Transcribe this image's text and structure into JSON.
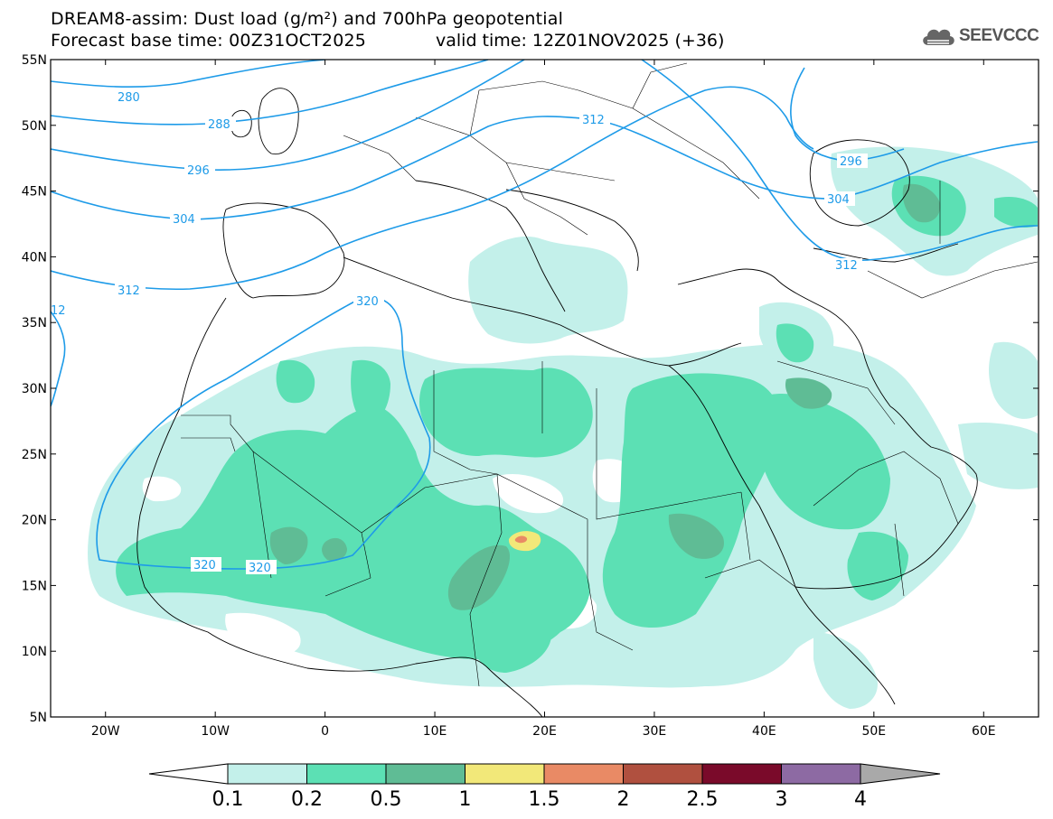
{
  "title": {
    "line1": "DREAM8-assim: Dust load (g/m²) and 700hPa geopotential",
    "base_time": "Forecast base time: 00Z31OCT2025",
    "valid_time": "valid time: 12Z01NOV2025 (+36)"
  },
  "logo": {
    "text": "SEEVCCC",
    "icon": "cloud-icon"
  },
  "map": {
    "lat_labels": [
      "55N",
      "50N",
      "45N",
      "40N",
      "35N",
      "30N",
      "25N",
      "20N",
      "15N",
      "10N",
      "5N"
    ],
    "lon_labels": [
      "20W",
      "10W",
      "0",
      "10E",
      "20E",
      "30E",
      "40E",
      "50E",
      "60E"
    ],
    "lon_range": [
      -25,
      65
    ],
    "lat_range": [
      5,
      55
    ]
  },
  "contours": {
    "color": "#1e9be8",
    "labels": [
      "280",
      "288",
      "296",
      "304",
      "312",
      "320",
      "296",
      "304",
      "312",
      "320",
      "320",
      "12"
    ]
  },
  "colorbar": {
    "levels": [
      "0.1",
      "0.2",
      "0.5",
      "1",
      "1.5",
      "2",
      "2.5",
      "3",
      "4"
    ],
    "colors": [
      "#c3f0ea",
      "#5ce0b4",
      "#5fbc95",
      "#f2e879",
      "#e98a65",
      "#b0503f",
      "#7a0a2a",
      "#8d6aa3"
    ],
    "below_color": "#ffffff",
    "above_color": "#a9a9a9"
  }
}
